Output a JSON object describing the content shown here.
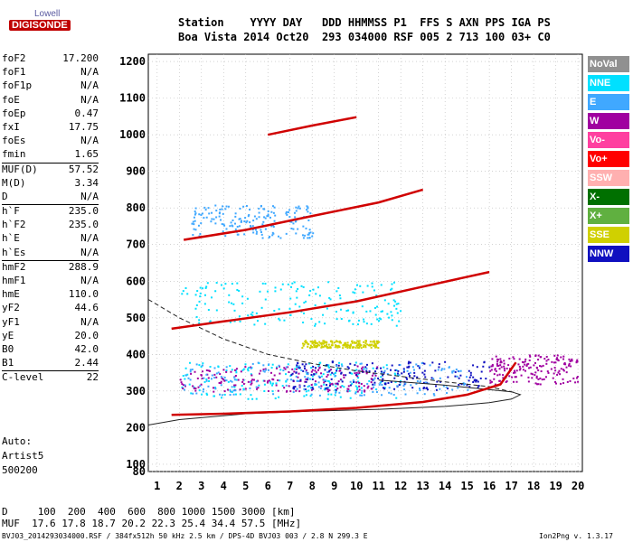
{
  "logo": {
    "brand": "Lowell",
    "name": "DIGISONDE"
  },
  "header": {
    "row1": "Station    YYYY DAY   DDD HHMMSS P1  FFS S AXN PPS IGA PS",
    "row2": "Boa Vista 2014 Oct20  293 034000 RSF 005 2 713 100 03+ C0"
  },
  "params": [
    {
      "label": "foF2",
      "value": "17.200"
    },
    {
      "label": "foF1",
      "value": "N/A"
    },
    {
      "label": "foF1p",
      "value": "N/A"
    },
    {
      "label": "foE",
      "value": "N/A"
    },
    {
      "label": "foEp",
      "value": "0.47"
    },
    {
      "label": "fxI",
      "value": "17.75"
    },
    {
      "label": "foEs",
      "value": "N/A"
    },
    {
      "label": "fmin",
      "value": "1.65"
    },
    {
      "label": "MUF(D)",
      "value": "57.52",
      "sep": true
    },
    {
      "label": "M(D)",
      "value": "3.34"
    },
    {
      "label": "D",
      "value": "N/A"
    },
    {
      "label": "h`F",
      "value": "235.0",
      "sep": true
    },
    {
      "label": "h`F2",
      "value": "235.0"
    },
    {
      "label": "h`E",
      "value": "N/A"
    },
    {
      "label": "h`Es",
      "value": "N/A"
    },
    {
      "label": "hmF2",
      "value": "288.9",
      "sep": true
    },
    {
      "label": "hmF1",
      "value": "N/A"
    },
    {
      "label": "hmE",
      "value": "110.0"
    },
    {
      "label": "yF2",
      "value": "44.6"
    },
    {
      "label": "yF1",
      "value": "N/A"
    },
    {
      "label": "yE",
      "value": "20.0"
    },
    {
      "label": "B0",
      "value": "42.0"
    },
    {
      "label": "B1",
      "value": "2.44"
    },
    {
      "label": "C-level",
      "value": "22",
      "sep": true
    }
  ],
  "autoscaling": {
    "line1": "Auto:",
    "line2": "Artist5",
    "line3": "500200"
  },
  "legend": [
    {
      "label": "NoVal",
      "color": "#909090"
    },
    {
      "label": "NNE",
      "color": "#00e0ff"
    },
    {
      "label": "E",
      "color": "#40a8ff"
    },
    {
      "label": "W",
      "color": "#a000a0"
    },
    {
      "label": "Vo-",
      "color": "#ff40a0"
    },
    {
      "label": "Vo+",
      "color": "#ff0000"
    },
    {
      "label": "SSW",
      "color": "#ffb0b0"
    },
    {
      "label": "X-",
      "color": "#007000"
    },
    {
      "label": "X+",
      "color": "#60b040"
    },
    {
      "label": "SSE",
      "color": "#d0d000"
    },
    {
      "label": "NNW",
      "color": "#1010c0"
    }
  ],
  "footer": {
    "d_row": "D     100  200  400  600  800 1000 1500 3000 [km]",
    "muf_row": "MUF  17.6 17.8 18.7 20.2 22.3 25.4 34.4 57.5 [MHz]",
    "file_info": "BVJ03_2014293034000.RSF / 384fx512h 50 kHz 2.5 km / DPS-4D BVJ03 003 / 2.8 N 299.3 E",
    "version": "Ion2Png v. 1.3.17"
  },
  "chart_data": {
    "type": "scatter",
    "title": "",
    "xlabel": "",
    "ylabel": "",
    "xlim": [
      0.6,
      20.2
    ],
    "ylim": [
      80,
      1220
    ],
    "x_ticks": [
      1,
      2,
      3,
      4,
      5,
      6,
      7,
      8,
      9,
      10,
      11,
      12,
      13,
      14,
      15,
      16,
      17,
      18,
      19,
      20
    ],
    "y_ticks": [
      80,
      100,
      200,
      300,
      400,
      500,
      600,
      700,
      800,
      900,
      1000,
      1100,
      1200
    ],
    "grid": true,
    "traces": [
      {
        "name": "O-trace 1st hop",
        "color": "#d00000",
        "x": [
          1.65,
          4,
          7,
          10,
          13,
          15,
          16.5,
          17.2
        ],
        "y": [
          235,
          238,
          244,
          254,
          270,
          290,
          318,
          378
        ]
      },
      {
        "name": "O-trace 2nd hop",
        "color": "#d00000",
        "x": [
          1.65,
          4,
          7,
          10,
          13,
          16
        ],
        "y": [
          470,
          490,
          515,
          545,
          585,
          625
        ]
      },
      {
        "name": "O-trace 3rd hop",
        "color": "#d00000",
        "x": [
          2.2,
          5,
          8,
          11,
          13
        ],
        "y": [
          713,
          740,
          778,
          815,
          850
        ]
      },
      {
        "name": "O-trace 4th hop",
        "color": "#d00000",
        "x": [
          6,
          8,
          10
        ],
        "y": [
          1000,
          1025,
          1048
        ]
      }
    ],
    "profiles": [
      {
        "name": "virtual height (dashed)",
        "style": "dashed",
        "x": [
          0.6,
          2,
          4,
          6,
          8,
          10,
          12,
          14,
          16,
          17.2
        ],
        "y": [
          550,
          500,
          442,
          400,
          375,
          355,
          340,
          325,
          312,
          295
        ]
      },
      {
        "name": "true height profile",
        "style": "solid",
        "x": [
          0.6,
          2,
          5,
          8,
          11,
          14,
          16,
          17,
          17.4,
          17,
          14,
          11
        ],
        "y": [
          207,
          222,
          238,
          245,
          250,
          258,
          268,
          278,
          290,
          298,
          316,
          330
        ]
      }
    ],
    "clusters": [
      {
        "color": "#00e0ff",
        "x": [
          2,
          12
        ],
        "y": [
          280,
          380
        ]
      },
      {
        "color": "#a000a0",
        "x": [
          2,
          11
        ],
        "y": [
          300,
          370
        ]
      },
      {
        "color": "#1010c0",
        "x": [
          7,
          16
        ],
        "y": [
          305,
          385
        ]
      },
      {
        "color": "#40a8ff",
        "x": [
          2,
          15
        ],
        "y": [
          290,
          380
        ]
      },
      {
        "color": "#d0d000",
        "x": [
          7.5,
          11
        ],
        "y": [
          420,
          440
        ]
      },
      {
        "color": "#a000a0",
        "x": [
          16,
          20
        ],
        "y": [
          320,
          400
        ]
      },
      {
        "color": "#00e0ff",
        "x": [
          2,
          12
        ],
        "y": [
          480,
          600
        ]
      },
      {
        "color": "#40a8ff",
        "x": [
          2.5,
          8
        ],
        "y": [
          720,
          810
        ]
      }
    ]
  }
}
